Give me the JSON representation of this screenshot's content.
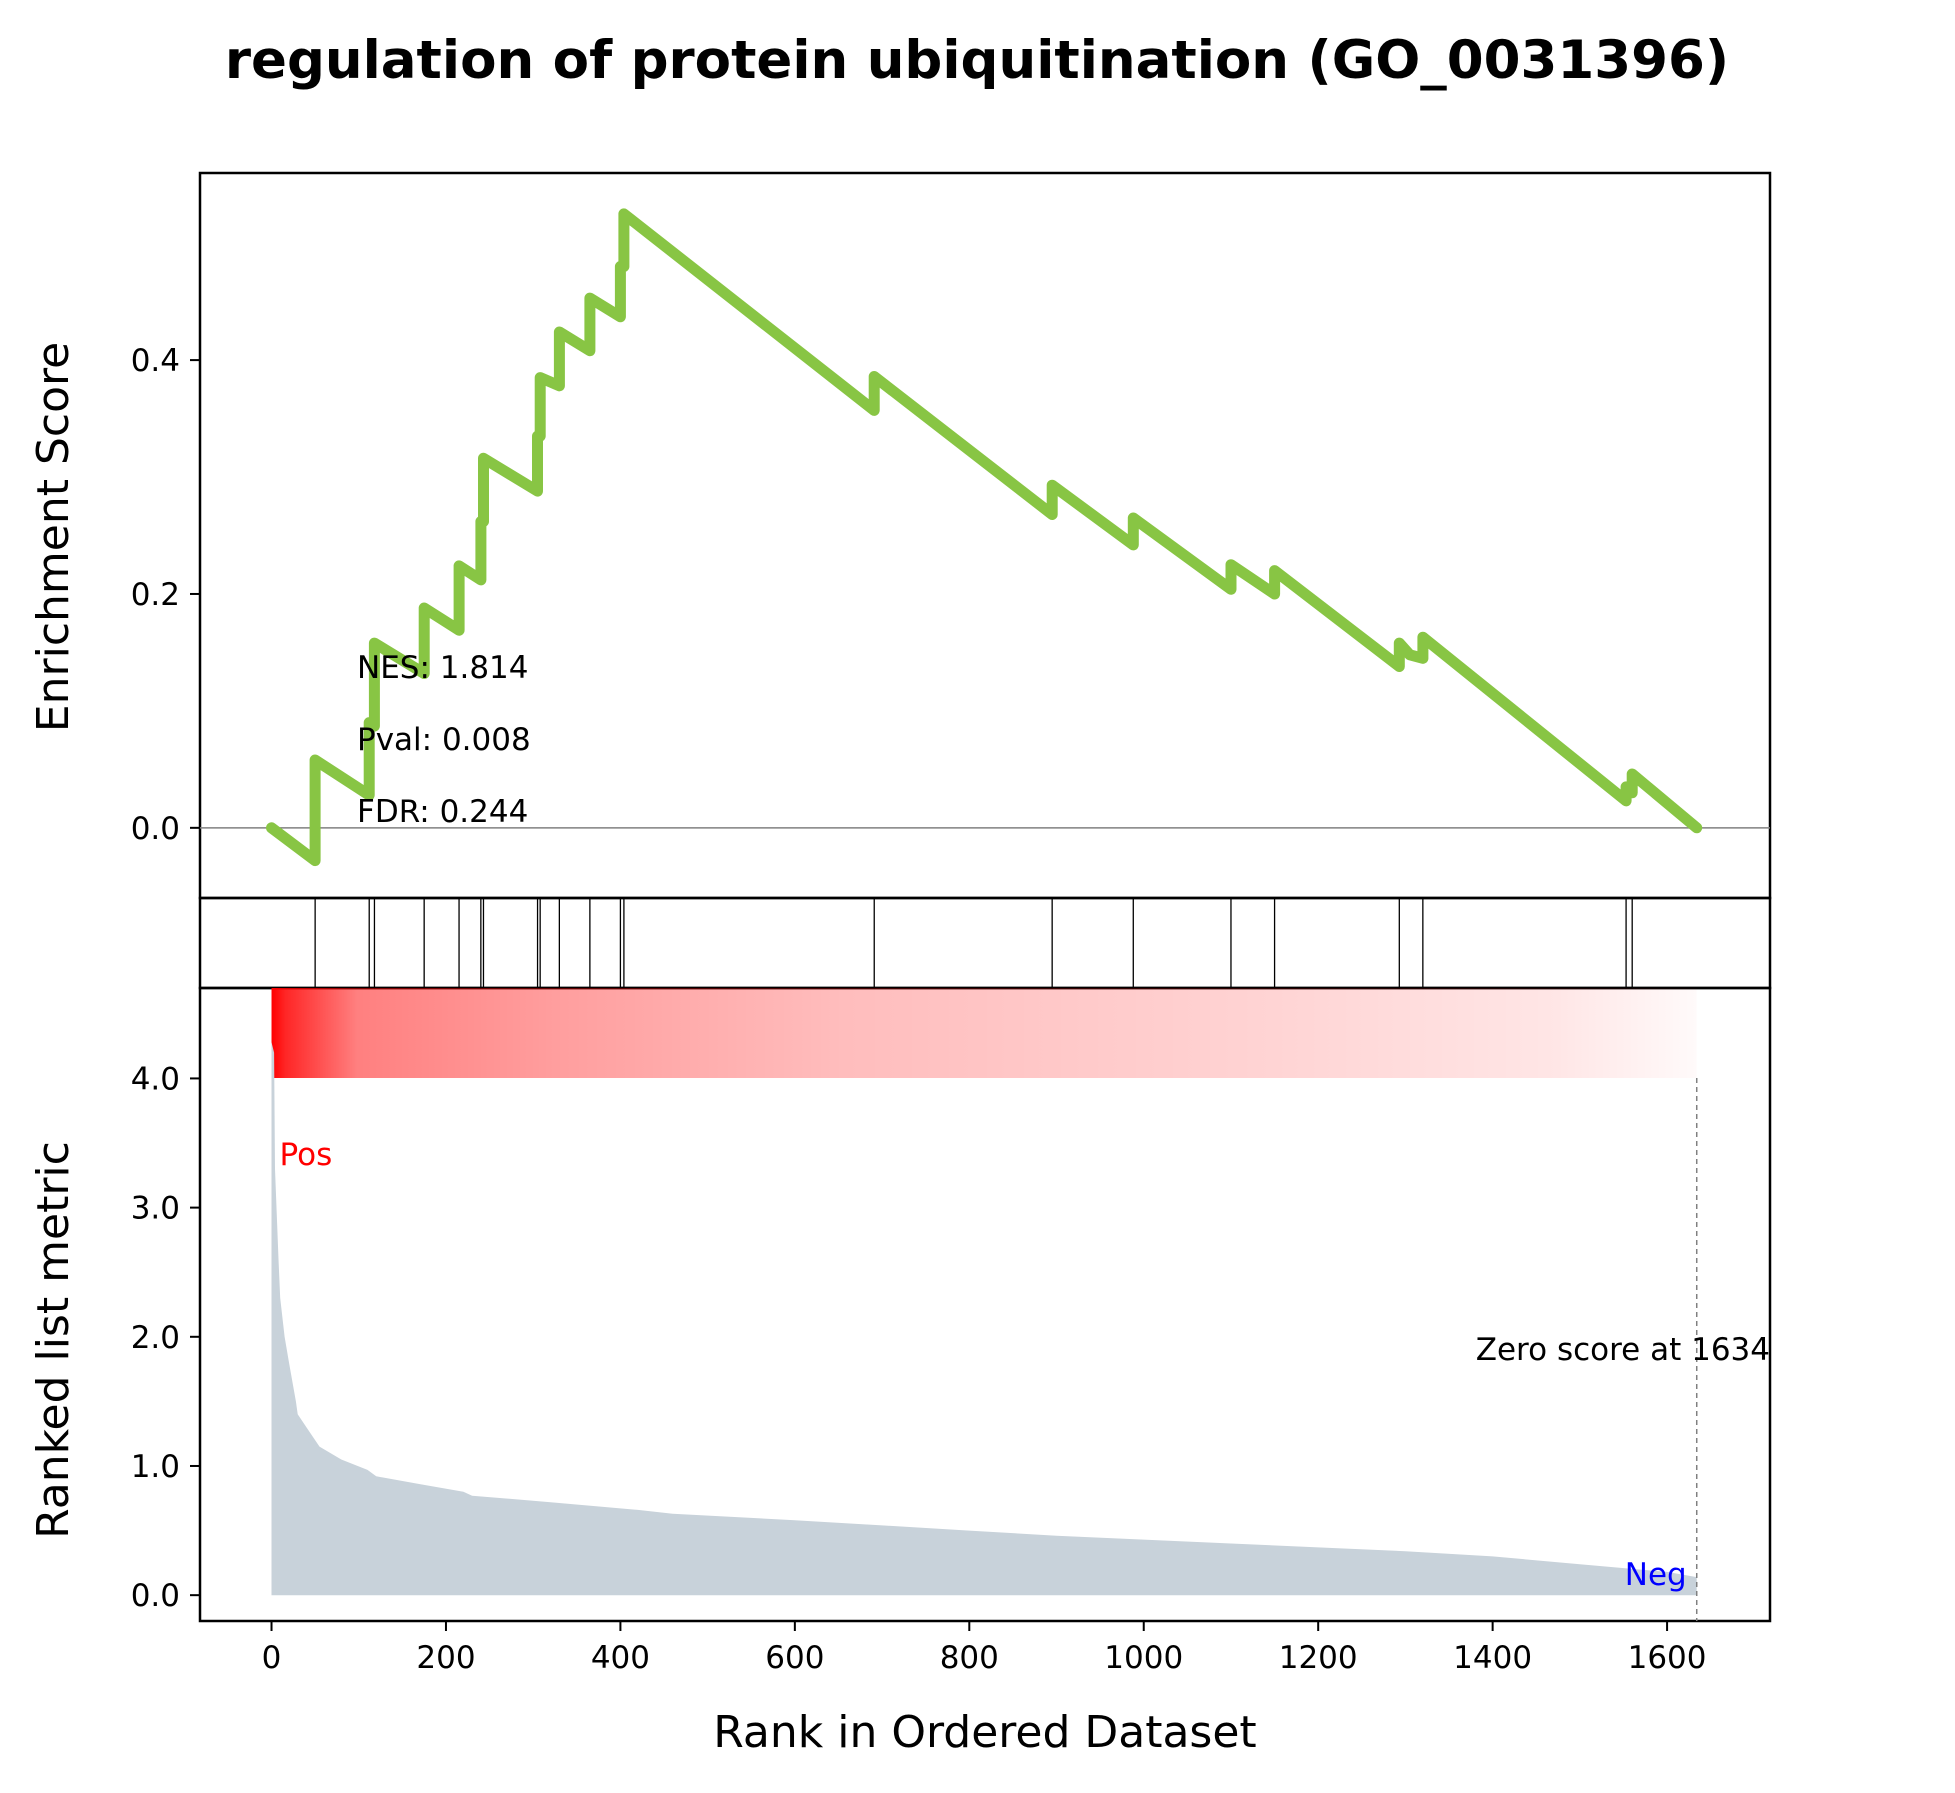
{
  "chart_data": {
    "type": "line",
    "title": "regulation of protein ubiquitination (GO_0031396)",
    "xlabel": "Rank in Ordered Dataset",
    "xlim": [
      -82,
      1718
    ],
    "x_ticks": [
      0,
      200,
      400,
      600,
      800,
      1000,
      1200,
      1400,
      1600
    ],
    "x_tick_labels": [
      "0",
      "200",
      "400",
      "600",
      "800",
      "1000",
      "1200",
      "1400",
      "1600"
    ],
    "enrichment_panel": {
      "ylabel": "Enrichment Score",
      "ylim": [
        -0.06,
        0.56
      ],
      "y_ticks": [
        0.0,
        0.2,
        0.4
      ],
      "y_tick_labels": [
        "0.0",
        "0.2",
        "0.4"
      ],
      "line_color": "#88c544",
      "stats": {
        "nes": "NES: 1.814",
        "pval": "Pval: 0.008",
        "fdr": "FDR: 0.244"
      },
      "hit_ranks": [
        50,
        112,
        118,
        175,
        215,
        240,
        243,
        305,
        308,
        330,
        365,
        400,
        404,
        691,
        895,
        988,
        1100,
        1150,
        1293,
        1320,
        1553,
        1560
      ],
      "es_points": [
        [
          0,
          0.0
        ],
        [
          50,
          -0.028
        ],
        [
          50,
          0.058
        ],
        [
          112,
          0.028
        ],
        [
          112,
          0.09
        ],
        [
          118,
          0.087
        ],
        [
          118,
          0.158
        ],
        [
          175,
          0.132
        ],
        [
          175,
          0.188
        ],
        [
          215,
          0.169
        ],
        [
          215,
          0.224
        ],
        [
          240,
          0.212
        ],
        [
          240,
          0.262
        ],
        [
          243,
          0.262
        ],
        [
          243,
          0.316
        ],
        [
          305,
          0.288
        ],
        [
          305,
          0.335
        ],
        [
          308,
          0.335
        ],
        [
          308,
          0.385
        ],
        [
          330,
          0.378
        ],
        [
          330,
          0.424
        ],
        [
          365,
          0.408
        ],
        [
          365,
          0.453
        ],
        [
          400,
          0.437
        ],
        [
          400,
          0.48
        ],
        [
          404,
          0.48
        ],
        [
          404,
          0.525
        ],
        [
          691,
          0.357
        ],
        [
          691,
          0.386
        ],
        [
          895,
          0.268
        ],
        [
          895,
          0.293
        ],
        [
          988,
          0.242
        ],
        [
          988,
          0.265
        ],
        [
          1100,
          0.204
        ],
        [
          1100,
          0.225
        ],
        [
          1150,
          0.2
        ],
        [
          1150,
          0.22
        ],
        [
          1293,
          0.138
        ],
        [
          1293,
          0.158
        ],
        [
          1305,
          0.148
        ],
        [
          1320,
          0.145
        ],
        [
          1320,
          0.163
        ],
        [
          1553,
          0.023
        ],
        [
          1553,
          0.035
        ],
        [
          1560,
          0.03
        ],
        [
          1560,
          0.046
        ],
        [
          1634,
          0.0
        ]
      ]
    },
    "metric_panel": {
      "ylabel": "Ranked list metric",
      "ylim": [
        -0.2,
        4.7
      ],
      "y_ticks": [
        0.0,
        1.0,
        2.0,
        3.0,
        4.0
      ],
      "y_tick_labels": [
        "0.0",
        "1.0",
        "2.0",
        "3.0",
        "4.0"
      ],
      "fill_color": "#c8d2da",
      "pos_label": "Pos",
      "pos_color": "#ff0000",
      "neg_label": "Neg",
      "neg_color": "#0000ff",
      "zero_score_text": "Zero score at 1634",
      "zero_rank": 1634,
      "heat_color": "#ff0000",
      "metric_points": [
        [
          0,
          4.28
        ],
        [
          3,
          4.2
        ],
        [
          4,
          3.3
        ],
        [
          8,
          2.6
        ],
        [
          10,
          2.3
        ],
        [
          15,
          2.0
        ],
        [
          20,
          1.8
        ],
        [
          28,
          1.5
        ],
        [
          30,
          1.4
        ],
        [
          40,
          1.3
        ],
        [
          55,
          1.15
        ],
        [
          80,
          1.05
        ],
        [
          110,
          0.97
        ],
        [
          120,
          0.92
        ],
        [
          170,
          0.86
        ],
        [
          220,
          0.8
        ],
        [
          230,
          0.77
        ],
        [
          320,
          0.72
        ],
        [
          420,
          0.66
        ],
        [
          460,
          0.63
        ],
        [
          600,
          0.58
        ],
        [
          700,
          0.54
        ],
        [
          800,
          0.5
        ],
        [
          900,
          0.46
        ],
        [
          1000,
          0.43
        ],
        [
          1100,
          0.4
        ],
        [
          1200,
          0.37
        ],
        [
          1300,
          0.34
        ],
        [
          1400,
          0.3
        ],
        [
          1500,
          0.24
        ],
        [
          1600,
          0.18
        ],
        [
          1634,
          0.14
        ]
      ]
    }
  }
}
